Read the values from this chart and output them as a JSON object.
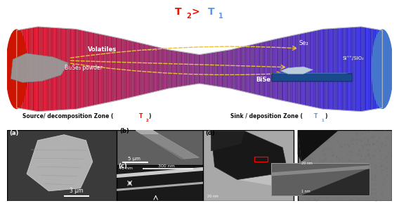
{
  "title_color_T2": "#EE1100",
  "title_color_T1": "#5599EE",
  "label_color": "#111111",
  "volatiles_text": "Volatiles",
  "powder_text": "Bi₂Se₃ powder",
  "Se2_text": "Se₂",
  "BiSe_text": "BiSe",
  "SiO2_text": "Si⁺⁺/SiO₂",
  "arrow_color": "#E8C040",
  "scalebar_3um": "3 μm",
  "scalebar_5um": "5 μm",
  "scalebar_40nm": "40 nm",
  "scalebar_300nm": "300 nm",
  "bg_color": "#FFFFFF",
  "source_label_black": "Source/ decomposition Zone (",
  "source_T_sub": "2",
  "source_T_color": "#EE1100",
  "sink_label_black": "Sink / deposition Zone (",
  "sink_T_sub": "1",
  "sink_T_color": "#5599EE",
  "panel_labels": [
    "(a)",
    "(b)",
    "(c)",
    "(d)"
  ]
}
